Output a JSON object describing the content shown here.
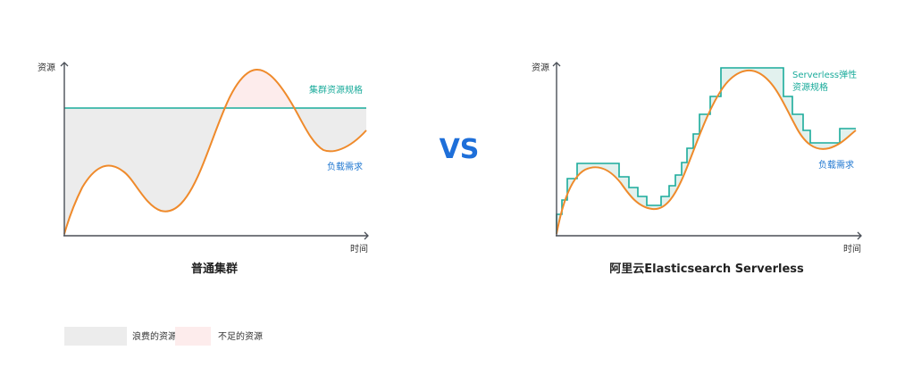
{
  "colors": {
    "axis": "#4a4f57",
    "demand": "#ef8a2b",
    "capacity": "#1aab9b",
    "waste_fill": "#ececec",
    "shortage_fill": "#fdecec",
    "demand_label": "#1f77d0",
    "vs": "#1e6fd9"
  },
  "left": {
    "y_axis": "资源",
    "x_axis": "时间",
    "capacity_label": "集群资源规格",
    "demand_label": "负载需求",
    "caption": "普通集群"
  },
  "right": {
    "y_axis": "资源",
    "x_axis": "时间",
    "capacity_label_line1": "Serverless弹性",
    "capacity_label_line2": "资源规格",
    "demand_label": "负载需求",
    "caption": "阿里云Elasticsearch Serverless"
  },
  "vs_text": "VS",
  "legend": {
    "waste": "浪费的资源",
    "shortage": "不足的资源"
  }
}
